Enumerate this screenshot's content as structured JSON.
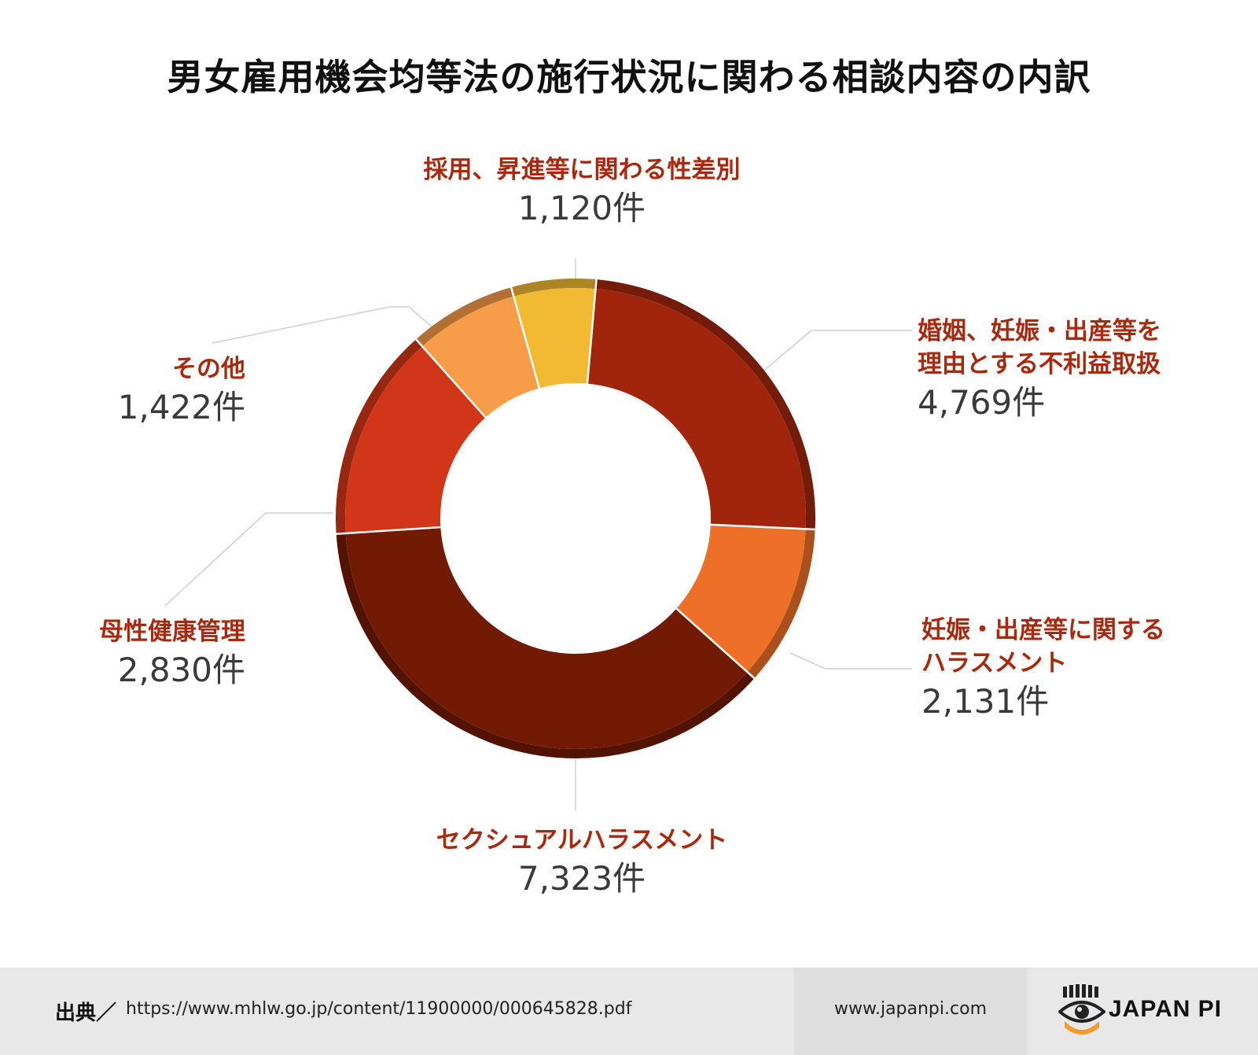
{
  "title": "男女雇用機会均等法の施行状況に関わる相談内容の内訳",
  "chart_data": {
    "type": "pie",
    "title": "男女雇用機会均等法の施行状況に関わる相談内容の内訳",
    "unit": "件",
    "slices": [
      {
        "label": "婚姻、妊娠・出産等を理由とする不利益取扱",
        "label_lines": [
          "婚姻、妊娠・出産等を",
          "理由とする不利益取扱"
        ],
        "value": 4769,
        "display": "4,769件",
        "color": "#a1250c"
      },
      {
        "label": "妊娠・出産等に関するハラスメント",
        "label_lines": [
          "妊娠・出産等に関する",
          "ハラスメント"
        ],
        "value": 2131,
        "display": "2,131件",
        "color": "#ee6f28"
      },
      {
        "label": "セクシュアルハラスメント",
        "label_lines": [
          "セクシュアルハラスメント"
        ],
        "value": 7323,
        "display": "7,323件",
        "color": "#731a04"
      },
      {
        "label": "母性健康管理",
        "label_lines": [
          "母性健康管理"
        ],
        "value": 2830,
        "display": "2,830件",
        "color": "#d23618"
      },
      {
        "label": "その他",
        "label_lines": [
          "その他"
        ],
        "value": 1422,
        "display": "1,422件",
        "color": "#f79c48"
      },
      {
        "label": "採用、昇進等に関わる性差別",
        "label_lines": [
          "採用、昇進等に関わる性差別"
        ],
        "value": 1120,
        "display": "1,120件",
        "color": "#f2b933"
      }
    ]
  },
  "footer": {
    "source_label": "出典／",
    "source_url": "https://www.mhlw.go.jp/content/11900000/000645828.pdf",
    "website": "www.japanpi.com",
    "logo_text": "JAPAN PI"
  }
}
